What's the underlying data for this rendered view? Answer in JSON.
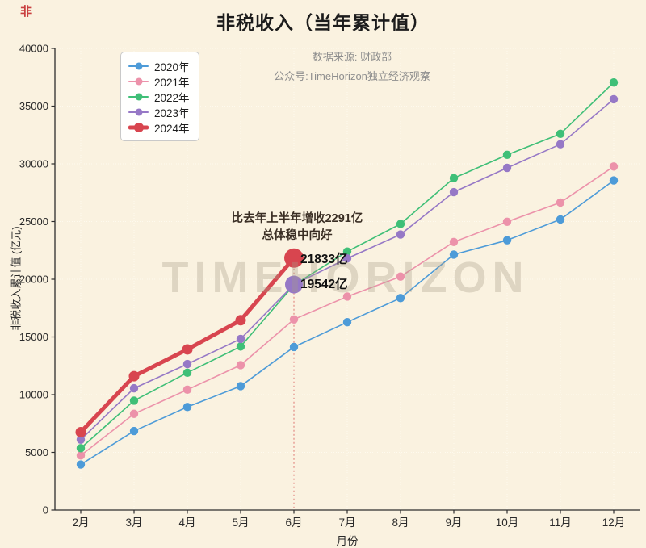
{
  "title": "非税收入（当年累计值）",
  "corner_mark": "非",
  "watermark": "TIMEHORIZON",
  "source": {
    "line1": "数据来源: 财政部",
    "line2": "公众号:TimeHorizon独立经济观察"
  },
  "annotation": {
    "line1": "比去年上半年增收2291亿",
    "line2": "总体稳中向好"
  },
  "point_labels": [
    {
      "text": "21833亿",
      "series": "2024年",
      "category": "6月"
    },
    {
      "text": "19542亿",
      "series": "2023年",
      "category": "6月"
    }
  ],
  "colors": {
    "background": "#faf2e0",
    "axis": "#2e2e2e",
    "grid": "#fffdf2",
    "guide_line": "#e59a90"
  },
  "chart_data": {
    "type": "line",
    "title": "非税收入（当年累计值）",
    "xlabel": "月份",
    "ylabel": "非税收入累计值 (亿元)",
    "ylim": [
      0,
      40000
    ],
    "ytick_step": 5000,
    "grid": true,
    "legend_position": "upper-left",
    "categories": [
      "2月",
      "3月",
      "4月",
      "5月",
      "6月",
      "7月",
      "8月",
      "9月",
      "10月",
      "11月",
      "12月"
    ],
    "series": [
      {
        "name": "2020年",
        "color": "#4d9bd8",
        "linewidth": 1.6,
        "values": [
          3950,
          6850,
          8930,
          10740,
          14130,
          16280,
          18370,
          22140,
          23380,
          25180,
          28560
        ]
      },
      {
        "name": "2021年",
        "color": "#ec92aa",
        "linewidth": 1.6,
        "values": [
          4730,
          8340,
          10430,
          12560,
          16520,
          18500,
          20230,
          23230,
          24980,
          26650,
          29770
        ]
      },
      {
        "name": "2022年",
        "color": "#3fbf77",
        "linewidth": 1.6,
        "values": [
          5360,
          9480,
          11900,
          14170,
          19500,
          22400,
          24790,
          28760,
          30780,
          32600,
          37050
        ]
      },
      {
        "name": "2023年",
        "color": "#9678c6",
        "linewidth": 1.6,
        "highlight_index": 4,
        "values": [
          6100,
          10550,
          12650,
          14830,
          19542,
          21800,
          23880,
          27550,
          29650,
          31700,
          35600
        ]
      },
      {
        "name": "2024年",
        "color": "#d8454f",
        "linewidth": 5,
        "highlight_index": 4,
        "values": [
          6750,
          11600,
          13920,
          16450,
          21833
        ]
      }
    ],
    "guide": {
      "series": "2024年",
      "category_index": 4
    }
  }
}
